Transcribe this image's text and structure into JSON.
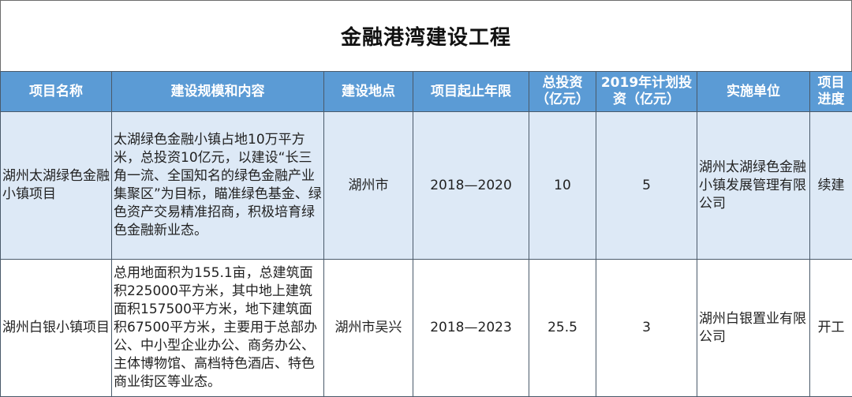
{
  "title": "金融港湾建设工程",
  "colors": {
    "header_bg": "#5b9bd5",
    "row_alt_bg": "#dde9f6"
  },
  "columns": [
    "项目名称",
    "建设规模和内容",
    "建设地点",
    "项目起止年限",
    "总投资（亿元）",
    "2019年计划投资（亿元）",
    "实施单位",
    "项目进度"
  ],
  "rows": [
    {
      "name": "湖州太湖绿色金融小镇项目",
      "content": "太湖绿色金融小镇占地10万平方米，总投资10亿元，以建设“长三角一流、全国知名的绿色金融产业集聚区”为目标，瞄准绿色基金、绿色资产交易精准招商，积极培育绿色金融新业态。",
      "location": "湖州市",
      "period": "2018—2020",
      "total_investment": "10",
      "plan_2019": "5",
      "unit": "湖州太湖绿色金融小镇发展管理有限公司",
      "progress": "续建"
    },
    {
      "name": "湖州白银小镇项目",
      "content": "总用地面积为155.1亩，总建筑面积225000平方米，其中地上建筑面积157500平方米，地下建筑面积67500平方米，主要用于总部办公、中小型企业办公、商务办公、主体博物馆、高档特色酒店、特色商业街区等业态。",
      "location": "湖州市吴兴",
      "period": "2018—2023",
      "total_investment": "25.5",
      "plan_2019": "3",
      "unit": "湖州白银置业有限公司",
      "progress": "开工"
    }
  ]
}
